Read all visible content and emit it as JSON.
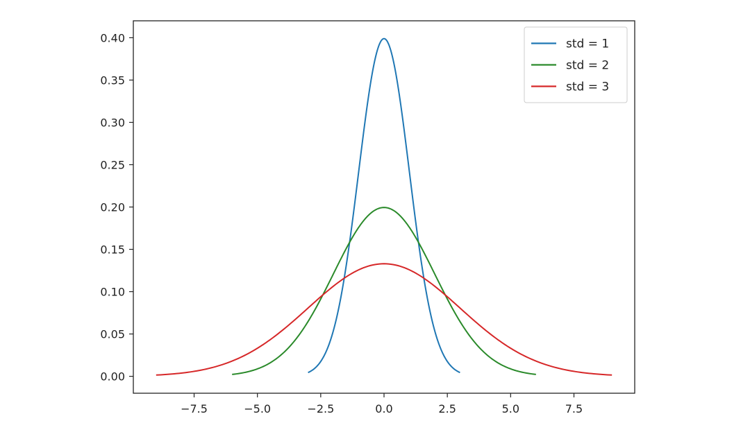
{
  "chart_data": {
    "type": "line",
    "title": "",
    "xlabel": "",
    "ylabel": "",
    "xlim": [
      -9.9,
      9.9
    ],
    "ylim": [
      -0.02,
      0.42
    ],
    "xticks": [
      -7.5,
      -5.0,
      -2.5,
      0.0,
      2.5,
      5.0,
      7.5
    ],
    "xtick_labels": [
      "−7.5",
      "−5.0",
      "−2.5",
      "0.0",
      "2.5",
      "5.0",
      "7.5"
    ],
    "yticks": [
      0.0,
      0.05,
      0.1,
      0.15,
      0.2,
      0.25,
      0.3,
      0.35,
      0.4
    ],
    "ytick_labels": [
      "0.00",
      "0.05",
      "0.10",
      "0.15",
      "0.20",
      "0.25",
      "0.30",
      "0.35",
      "0.40"
    ],
    "grid": false,
    "legend_position": "top-right",
    "series": [
      {
        "name": "std = 1",
        "color": "#1f77b4",
        "mean": 0,
        "std": 1,
        "x_range": [
          -3,
          3
        ],
        "x": [
          -3,
          -2.5,
          -2,
          -1.5,
          -1,
          -0.5,
          0,
          0.5,
          1,
          1.5,
          2,
          2.5,
          3
        ],
        "y": [
          0.0044,
          0.0175,
          0.054,
          0.1295,
          0.242,
          0.3521,
          0.3989,
          0.3521,
          0.242,
          0.1295,
          0.054,
          0.0175,
          0.0044
        ]
      },
      {
        "name": "std = 2",
        "color": "#2a8a2a",
        "mean": 0,
        "std": 2,
        "x_range": [
          -6,
          6
        ],
        "x": [
          -6,
          -5,
          -4,
          -3,
          -2,
          -1,
          0,
          1,
          2,
          3,
          4,
          5,
          6
        ],
        "y": [
          0.0022,
          0.0088,
          0.027,
          0.0648,
          0.121,
          0.176,
          0.1995,
          0.176,
          0.121,
          0.0648,
          0.027,
          0.0088,
          0.0022
        ]
      },
      {
        "name": "std = 3",
        "color": "#d62728",
        "mean": 0,
        "std": 3,
        "x_range": [
          -9,
          9
        ],
        "x": [
          -9,
          -7.5,
          -6,
          -4.5,
          -3,
          -1.5,
          0,
          1.5,
          3,
          4.5,
          6,
          7.5,
          9
        ],
        "y": [
          0.0015,
          0.0058,
          0.018,
          0.0432,
          0.0807,
          0.1174,
          0.133,
          0.1174,
          0.0807,
          0.0432,
          0.018,
          0.0058,
          0.0015
        ]
      }
    ]
  }
}
